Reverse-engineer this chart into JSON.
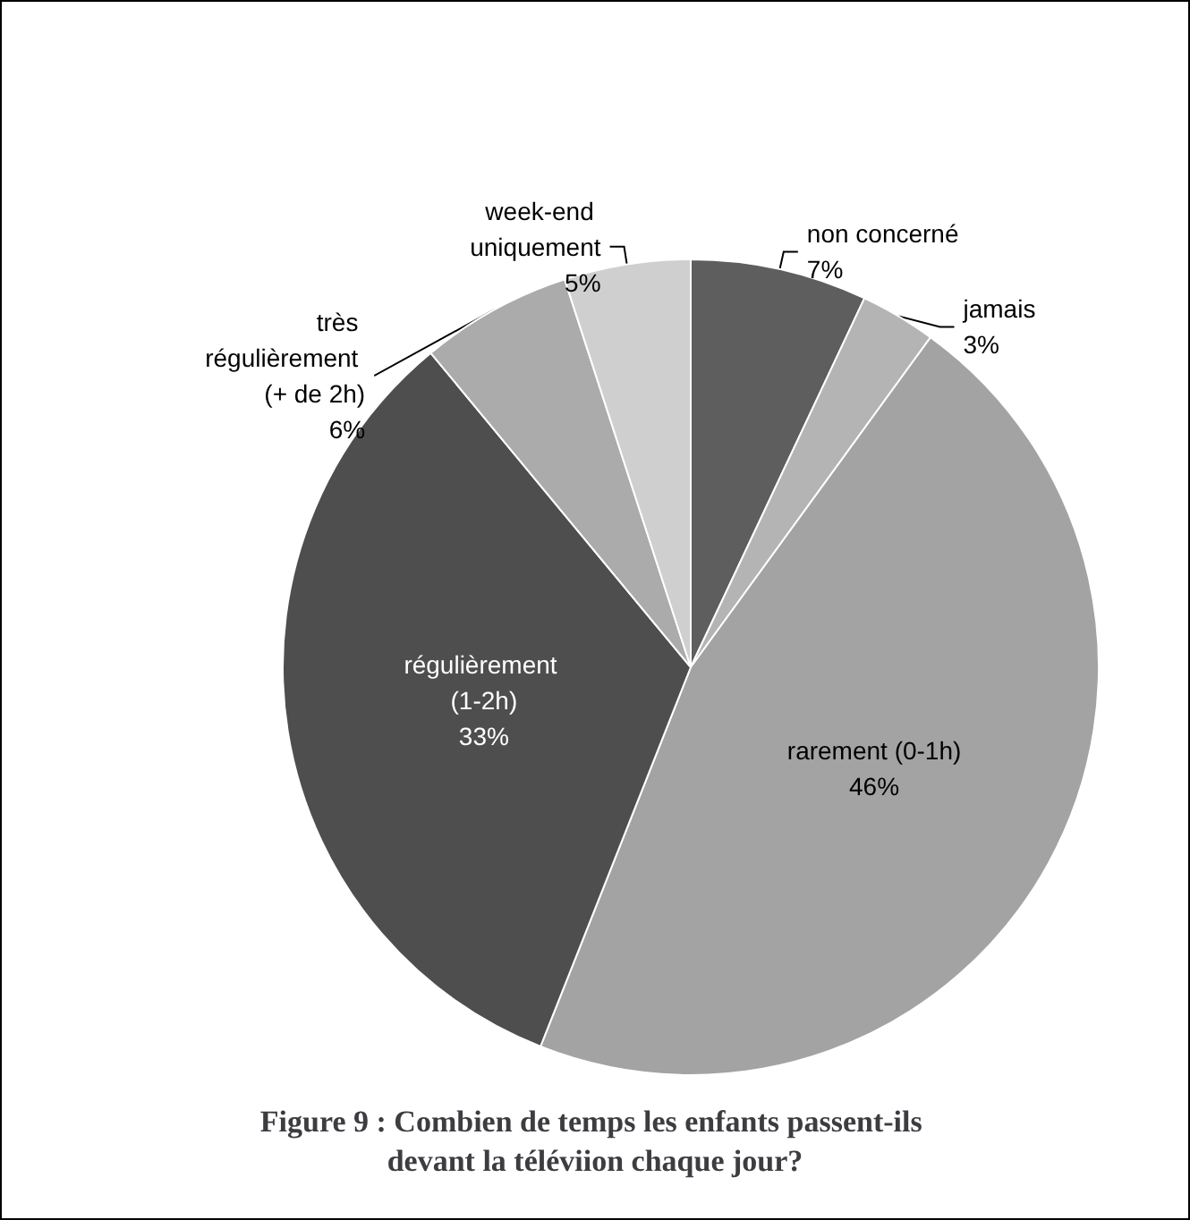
{
  "chart_data": {
    "type": "pie",
    "title": "Figure 9 : Combien de temps les enfants passent-ils devant la téléviion chaque jour?",
    "categories": [
      "non concerné",
      "jamais",
      "rarement (0-1h)",
      "régulièrement (1-2h)",
      "très régulièrement (+ de 2h)",
      "week-end uniquement"
    ],
    "values": [
      7,
      3,
      46,
      33,
      6,
      5
    ],
    "colors": [
      "#5e5e5e",
      "#b4b4b4",
      "#a3a3a3",
      "#4e4e4e",
      "#ababab",
      "#cfcfcf"
    ],
    "value_labels": [
      "7%",
      "3%",
      "46%",
      "33%",
      "6%",
      "5%"
    ],
    "legend": false
  }
}
